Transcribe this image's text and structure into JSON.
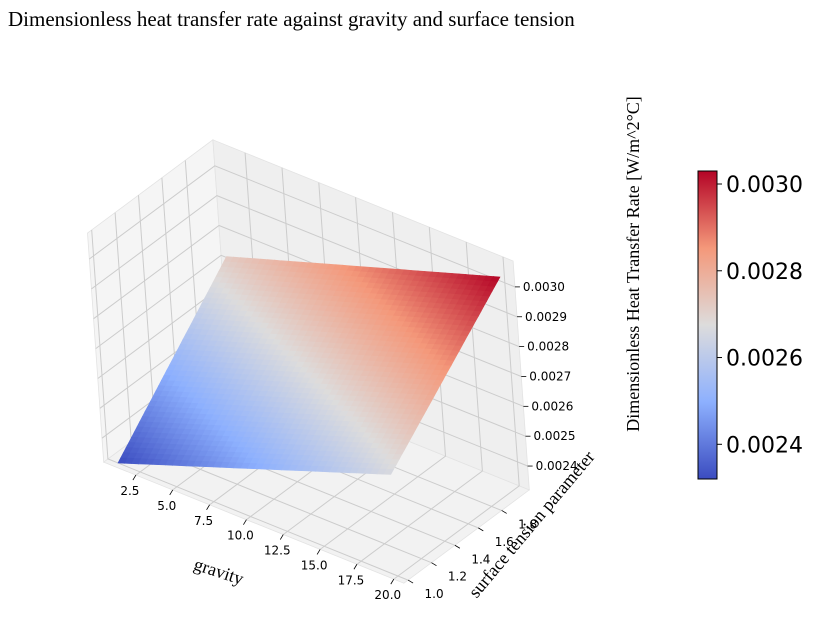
{
  "chart_data": {
    "type": "surface3d",
    "title": "Dimensionless heat transfer rate against gravity and surface tension",
    "xlabel": "gravity",
    "ylabel": "surface tension parameter",
    "zlabel": "Dimensionless Heat Transfer Rate [W/m^2°C]",
    "colormap": "coolwarm",
    "x_range": [
      1.0,
      20.0
    ],
    "y_range": [
      1.0,
      2.0
    ],
    "z_range": [
      0.00232,
      0.00303
    ],
    "x_ticks": [
      {
        "value": 2.5,
        "label": "2.5"
      },
      {
        "value": 5.0,
        "label": "5.0"
      },
      {
        "value": 7.5,
        "label": "7.5"
      },
      {
        "value": 10.0,
        "label": "10.0"
      },
      {
        "value": 12.5,
        "label": "12.5"
      },
      {
        "value": 15.0,
        "label": "15.0"
      },
      {
        "value": 17.5,
        "label": "17.5"
      },
      {
        "value": 20.0,
        "label": "20.0"
      }
    ],
    "y_ticks": [
      {
        "value": 1.0,
        "label": "1.0"
      },
      {
        "value": 1.2,
        "label": "1.2"
      },
      {
        "value": 1.4,
        "label": "1.4"
      },
      {
        "value": 1.6,
        "label": "1.6"
      },
      {
        "value": 1.8,
        "label": "1.8"
      }
    ],
    "z_ticks": [
      {
        "value": 0.0024,
        "label": "0.0024"
      },
      {
        "value": 0.0025,
        "label": "0.0025"
      },
      {
        "value": 0.0026,
        "label": "0.0026"
      },
      {
        "value": 0.0027,
        "label": "0.0027"
      },
      {
        "value": 0.0028,
        "label": "0.0028"
      },
      {
        "value": 0.0029,
        "label": "0.0029"
      },
      {
        "value": 0.003,
        "label": "0.0030"
      }
    ],
    "surface_corners": [
      {
        "gravity": 1.0,
        "surface_tension": 1.0,
        "value": 0.00232
      },
      {
        "gravity": 20.0,
        "surface_tension": 1.0,
        "value": 0.00266
      },
      {
        "gravity": 1.0,
        "surface_tension": 2.0,
        "value": 0.00272
      },
      {
        "gravity": 20.0,
        "surface_tension": 2.0,
        "value": 0.00303
      }
    ],
    "colorbar": {
      "range": [
        0.00232,
        0.00303
      ],
      "ticks": [
        {
          "value": 0.0024,
          "label": "0.0024"
        },
        {
          "value": 0.0026,
          "label": "0.0026"
        },
        {
          "value": 0.0028,
          "label": "0.0028"
        },
        {
          "value": 0.003,
          "label": "0.0030"
        }
      ]
    }
  }
}
